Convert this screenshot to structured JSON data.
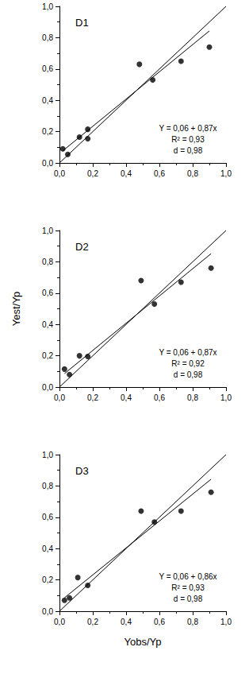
{
  "chart_data": [
    {
      "type": "scatter",
      "title": "D1",
      "x": [
        0.02,
        0.05,
        0.12,
        0.17,
        0.17,
        0.48,
        0.56,
        0.73,
        0.9
      ],
      "values": [
        0.09,
        0.055,
        0.165,
        0.215,
        0.155,
        0.63,
        0.53,
        0.65,
        0.74
      ],
      "fit": {
        "intercept": 0.06,
        "slope": 0.87
      },
      "annotations": [
        "Y = 0,06 + 0,87x",
        "R² = 0,93",
        "d = 0,98"
      ],
      "color": "#000000",
      "marker": "circle",
      "xlim": [
        0,
        1
      ],
      "ylim": [
        0,
        1
      ],
      "xticks": [
        {
          "value": 0,
          "label": "0,0"
        },
        {
          "value": 0.2,
          "label": "0,2"
        },
        {
          "value": 0.4,
          "label": "0,4"
        },
        {
          "value": 0.6,
          "label": "0,6"
        },
        {
          "value": 0.8,
          "label": "0,8"
        },
        {
          "value": 1,
          "label": "1,0"
        }
      ],
      "yticks": [
        {
          "value": 0,
          "label": "0,0"
        },
        {
          "value": 0.2,
          "label": "0,2"
        },
        {
          "value": 0.4,
          "label": "0,4"
        },
        {
          "value": 0.6,
          "label": "0,6"
        },
        {
          "value": 0.8,
          "label": "0,8"
        },
        {
          "value": 1,
          "label": "1,0"
        }
      ],
      "grid": false
    },
    {
      "type": "scatter",
      "title": "D2",
      "ylabel": "Yest/Yp",
      "x": [
        0.03,
        0.06,
        0.12,
        0.17,
        0.49,
        0.57,
        0.73,
        0.91
      ],
      "values": [
        0.115,
        0.08,
        0.2,
        0.195,
        0.68,
        0.53,
        0.67,
        0.76
      ],
      "fit": {
        "intercept": 0.06,
        "slope": 0.87
      },
      "annotations": [
        "Y = 0,06 + 0,87x",
        "R² = 0,92",
        "d = 0,98"
      ],
      "color": "#000000",
      "marker": "circle",
      "xlim": [
        0,
        1
      ],
      "ylim": [
        0,
        1
      ],
      "xticks": [
        {
          "value": 0,
          "label": "0,0"
        },
        {
          "value": 0.2,
          "label": "0,2"
        },
        {
          "value": 0.4,
          "label": "0,4"
        },
        {
          "value": 0.6,
          "label": "0,6"
        },
        {
          "value": 0.8,
          "label": "0,8"
        },
        {
          "value": 1,
          "label": "1,0"
        }
      ],
      "yticks": [
        {
          "value": 0,
          "label": "0,0"
        },
        {
          "value": 0.2,
          "label": "0,2"
        },
        {
          "value": 0.4,
          "label": "0,4"
        },
        {
          "value": 0.6,
          "label": "0,6"
        },
        {
          "value": 0.8,
          "label": "0,8"
        },
        {
          "value": 1,
          "label": "1,0"
        }
      ],
      "grid": false
    },
    {
      "type": "scatter",
      "title": "D3",
      "xlabel": "Yobs/Yp",
      "x": [
        0.03,
        0.06,
        0.11,
        0.17,
        0.49,
        0.57,
        0.73,
        0.91
      ],
      "values": [
        0.07,
        0.085,
        0.215,
        0.165,
        0.64,
        0.57,
        0.64,
        0.76
      ],
      "fit": {
        "intercept": 0.06,
        "slope": 0.86
      },
      "annotations": [
        "Y = 0,06 + 0,86x",
        "R² = 0,93",
        "d = 0,98"
      ],
      "color": "#000000",
      "marker": "circle",
      "xlim": [
        0,
        1
      ],
      "ylim": [
        0,
        1
      ],
      "xticks": [
        {
          "value": 0,
          "label": "0,0"
        },
        {
          "value": 0.2,
          "label": "0,2"
        },
        {
          "value": 0.4,
          "label": "0,4"
        },
        {
          "value": 0.6,
          "label": "0,6"
        },
        {
          "value": 0.8,
          "label": "0,8"
        },
        {
          "value": 1,
          "label": "1,0"
        }
      ],
      "yticks": [
        {
          "value": 0,
          "label": "0,0"
        },
        {
          "value": 0.2,
          "label": "0,2"
        },
        {
          "value": 0.4,
          "label": "0,4"
        },
        {
          "value": 0.6,
          "label": "0,6"
        },
        {
          "value": 0.8,
          "label": "0,8"
        },
        {
          "value": 1,
          "label": "1,0"
        }
      ],
      "grid": false
    }
  ]
}
